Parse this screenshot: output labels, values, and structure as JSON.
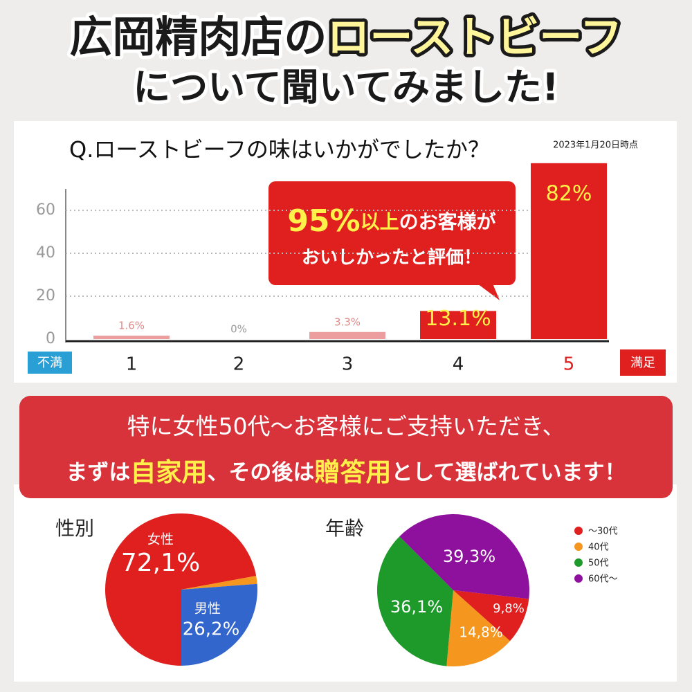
{
  "header": {
    "line1": [
      "広岡精肉店の",
      "ローストビーフ"
    ],
    "line2": "について聞いてみました!"
  },
  "banner": {
    "line1": "特に女性50代〜お客様にご支持いただき、",
    "line2": [
      "まずは",
      "自家用",
      "、その後は",
      "贈答用",
      "として選ばれています！"
    ]
  },
  "chart_data": [
    {
      "type": "bar",
      "title": "Q.ローストビーフの味はいかがでしたか？",
      "subtitle": "2023年1月20日時点",
      "categories": [
        "1",
        "2",
        "3",
        "4",
        "5"
      ],
      "values": [
        1.6,
        0,
        3.3,
        13.1,
        82
      ],
      "value_labels": [
        "1.6%",
        "0%",
        "3.3%",
        "13.1%",
        "82%"
      ],
      "colors": [
        "#ec9e9e",
        "#ec9e9e",
        "#ec9e9e",
        "#e01f1f",
        "#e01f1f"
      ],
      "ylim": [
        0,
        70
      ],
      "yticks": [
        0,
        20,
        40,
        60
      ],
      "grid": true,
      "scale_labels": {
        "low": "不満",
        "high": "満足"
      },
      "annotation": [
        "95%",
        "以上",
        "のお客様が",
        "おいしかったと評価！"
      ]
    },
    {
      "type": "pie",
      "title": "性別",
      "categories": [
        "女性",
        null,
        "男性"
      ],
      "values": [
        72.1,
        1.7,
        26.2
      ],
      "value_labels": [
        "72,1%",
        null,
        "26,2%"
      ],
      "colors": [
        "#e01f1f",
        "#f5961e",
        "#3366cc"
      ]
    },
    {
      "type": "pie",
      "title": "年齢",
      "categories": [
        "〜30代",
        "40代",
        "50代",
        "60代〜"
      ],
      "values": [
        9.8,
        14.8,
        36.1,
        39.3
      ],
      "value_labels": [
        "9,8%",
        "14,8%",
        "36,1%",
        "39,3%"
      ],
      "colors": [
        "#e01f1f",
        "#f5961e",
        "#1e9a2a",
        "#8e119e"
      ],
      "legend": true
    }
  ]
}
